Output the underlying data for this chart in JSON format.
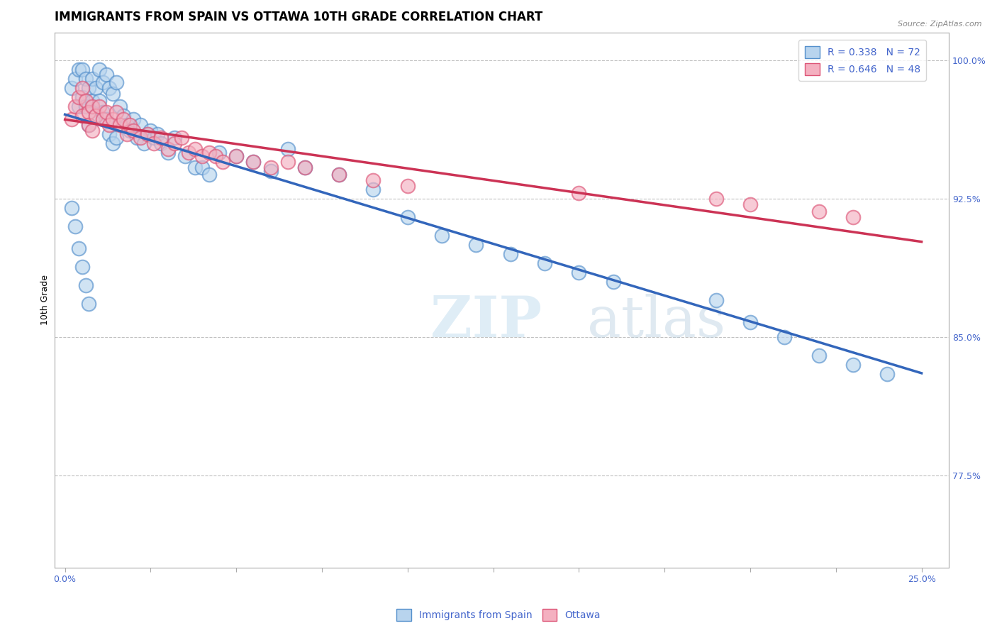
{
  "title": "IMMIGRANTS FROM SPAIN VS OTTAWA 10TH GRADE CORRELATION CHART",
  "source": "Source: ZipAtlas.com",
  "ylabel": "10th Grade",
  "xlim": [
    -0.003,
    0.258
  ],
  "ylim": [
    0.725,
    1.015
  ],
  "blue_R": 0.338,
  "blue_N": 72,
  "pink_R": 0.646,
  "pink_N": 48,
  "blue_fill": "#b8d4ee",
  "blue_edge": "#5590cc",
  "pink_fill": "#f4b0c0",
  "pink_edge": "#dd5577",
  "blue_line": "#3366bb",
  "pink_line": "#cc3355",
  "bg": "#ffffff",
  "grid_color": "#bbbbbb",
  "tick_color": "#4466cc",
  "title_fontsize": 12,
  "tick_fontsize": 9,
  "legend_fontsize": 10,
  "ylabel_fontsize": 9,
  "blue_x": [
    0.002,
    0.003,
    0.004,
    0.004,
    0.005,
    0.005,
    0.006,
    0.006,
    0.007,
    0.007,
    0.008,
    0.008,
    0.009,
    0.009,
    0.01,
    0.01,
    0.011,
    0.011,
    0.012,
    0.012,
    0.013,
    0.013,
    0.014,
    0.014,
    0.015,
    0.015,
    0.016,
    0.017,
    0.018,
    0.019,
    0.02,
    0.021,
    0.022,
    0.023,
    0.024,
    0.025,
    0.026,
    0.027,
    0.028,
    0.03,
    0.032,
    0.035,
    0.038,
    0.04,
    0.042,
    0.045,
    0.05,
    0.055,
    0.06,
    0.065,
    0.07,
    0.08,
    0.09,
    0.1,
    0.11,
    0.12,
    0.13,
    0.14,
    0.15,
    0.16,
    0.19,
    0.2,
    0.21,
    0.22,
    0.23,
    0.24,
    0.002,
    0.003,
    0.004,
    0.005,
    0.006,
    0.007
  ],
  "blue_y": [
    0.985,
    0.99,
    0.995,
    0.975,
    0.995,
    0.98,
    0.99,
    0.975,
    0.985,
    0.965,
    0.99,
    0.978,
    0.985,
    0.97,
    0.995,
    0.978,
    0.988,
    0.972,
    0.992,
    0.968,
    0.985,
    0.96,
    0.982,
    0.955,
    0.988,
    0.958,
    0.975,
    0.97,
    0.965,
    0.962,
    0.968,
    0.958,
    0.965,
    0.955,
    0.96,
    0.962,
    0.958,
    0.96,
    0.955,
    0.95,
    0.958,
    0.948,
    0.942,
    0.942,
    0.938,
    0.95,
    0.948,
    0.945,
    0.94,
    0.952,
    0.942,
    0.938,
    0.93,
    0.915,
    0.905,
    0.9,
    0.895,
    0.89,
    0.885,
    0.88,
    0.87,
    0.858,
    0.85,
    0.84,
    0.835,
    0.83,
    0.92,
    0.91,
    0.898,
    0.888,
    0.878,
    0.868
  ],
  "pink_x": [
    0.002,
    0.003,
    0.004,
    0.005,
    0.005,
    0.006,
    0.007,
    0.007,
    0.008,
    0.008,
    0.009,
    0.01,
    0.011,
    0.012,
    0.013,
    0.014,
    0.015,
    0.016,
    0.017,
    0.018,
    0.019,
    0.02,
    0.022,
    0.024,
    0.026,
    0.028,
    0.03,
    0.032,
    0.034,
    0.036,
    0.038,
    0.04,
    0.042,
    0.044,
    0.046,
    0.05,
    0.055,
    0.06,
    0.065,
    0.07,
    0.08,
    0.09,
    0.1,
    0.15,
    0.19,
    0.2,
    0.22,
    0.23
  ],
  "pink_y": [
    0.968,
    0.975,
    0.98,
    0.985,
    0.97,
    0.978,
    0.972,
    0.965,
    0.975,
    0.962,
    0.97,
    0.975,
    0.968,
    0.972,
    0.965,
    0.968,
    0.972,
    0.965,
    0.968,
    0.96,
    0.965,
    0.962,
    0.958,
    0.96,
    0.955,
    0.958,
    0.952,
    0.955,
    0.958,
    0.95,
    0.952,
    0.948,
    0.95,
    0.948,
    0.945,
    0.948,
    0.945,
    0.942,
    0.945,
    0.942,
    0.938,
    0.935,
    0.932,
    0.928,
    0.925,
    0.922,
    0.918,
    0.915
  ],
  "ytick_vals": [
    0.775,
    0.85,
    0.925,
    1.0
  ],
  "ytick_labels": [
    "77.5%",
    "85.0%",
    "92.5%",
    "100.0%"
  ],
  "xtick_vals": [
    0.0,
    0.025,
    0.05,
    0.075,
    0.1,
    0.125,
    0.15,
    0.175,
    0.2,
    0.225,
    0.25
  ],
  "xtick_labels": [
    "0.0%",
    "",
    "",
    "",
    "",
    "",
    "",
    "",
    "",
    "",
    "25.0%"
  ]
}
